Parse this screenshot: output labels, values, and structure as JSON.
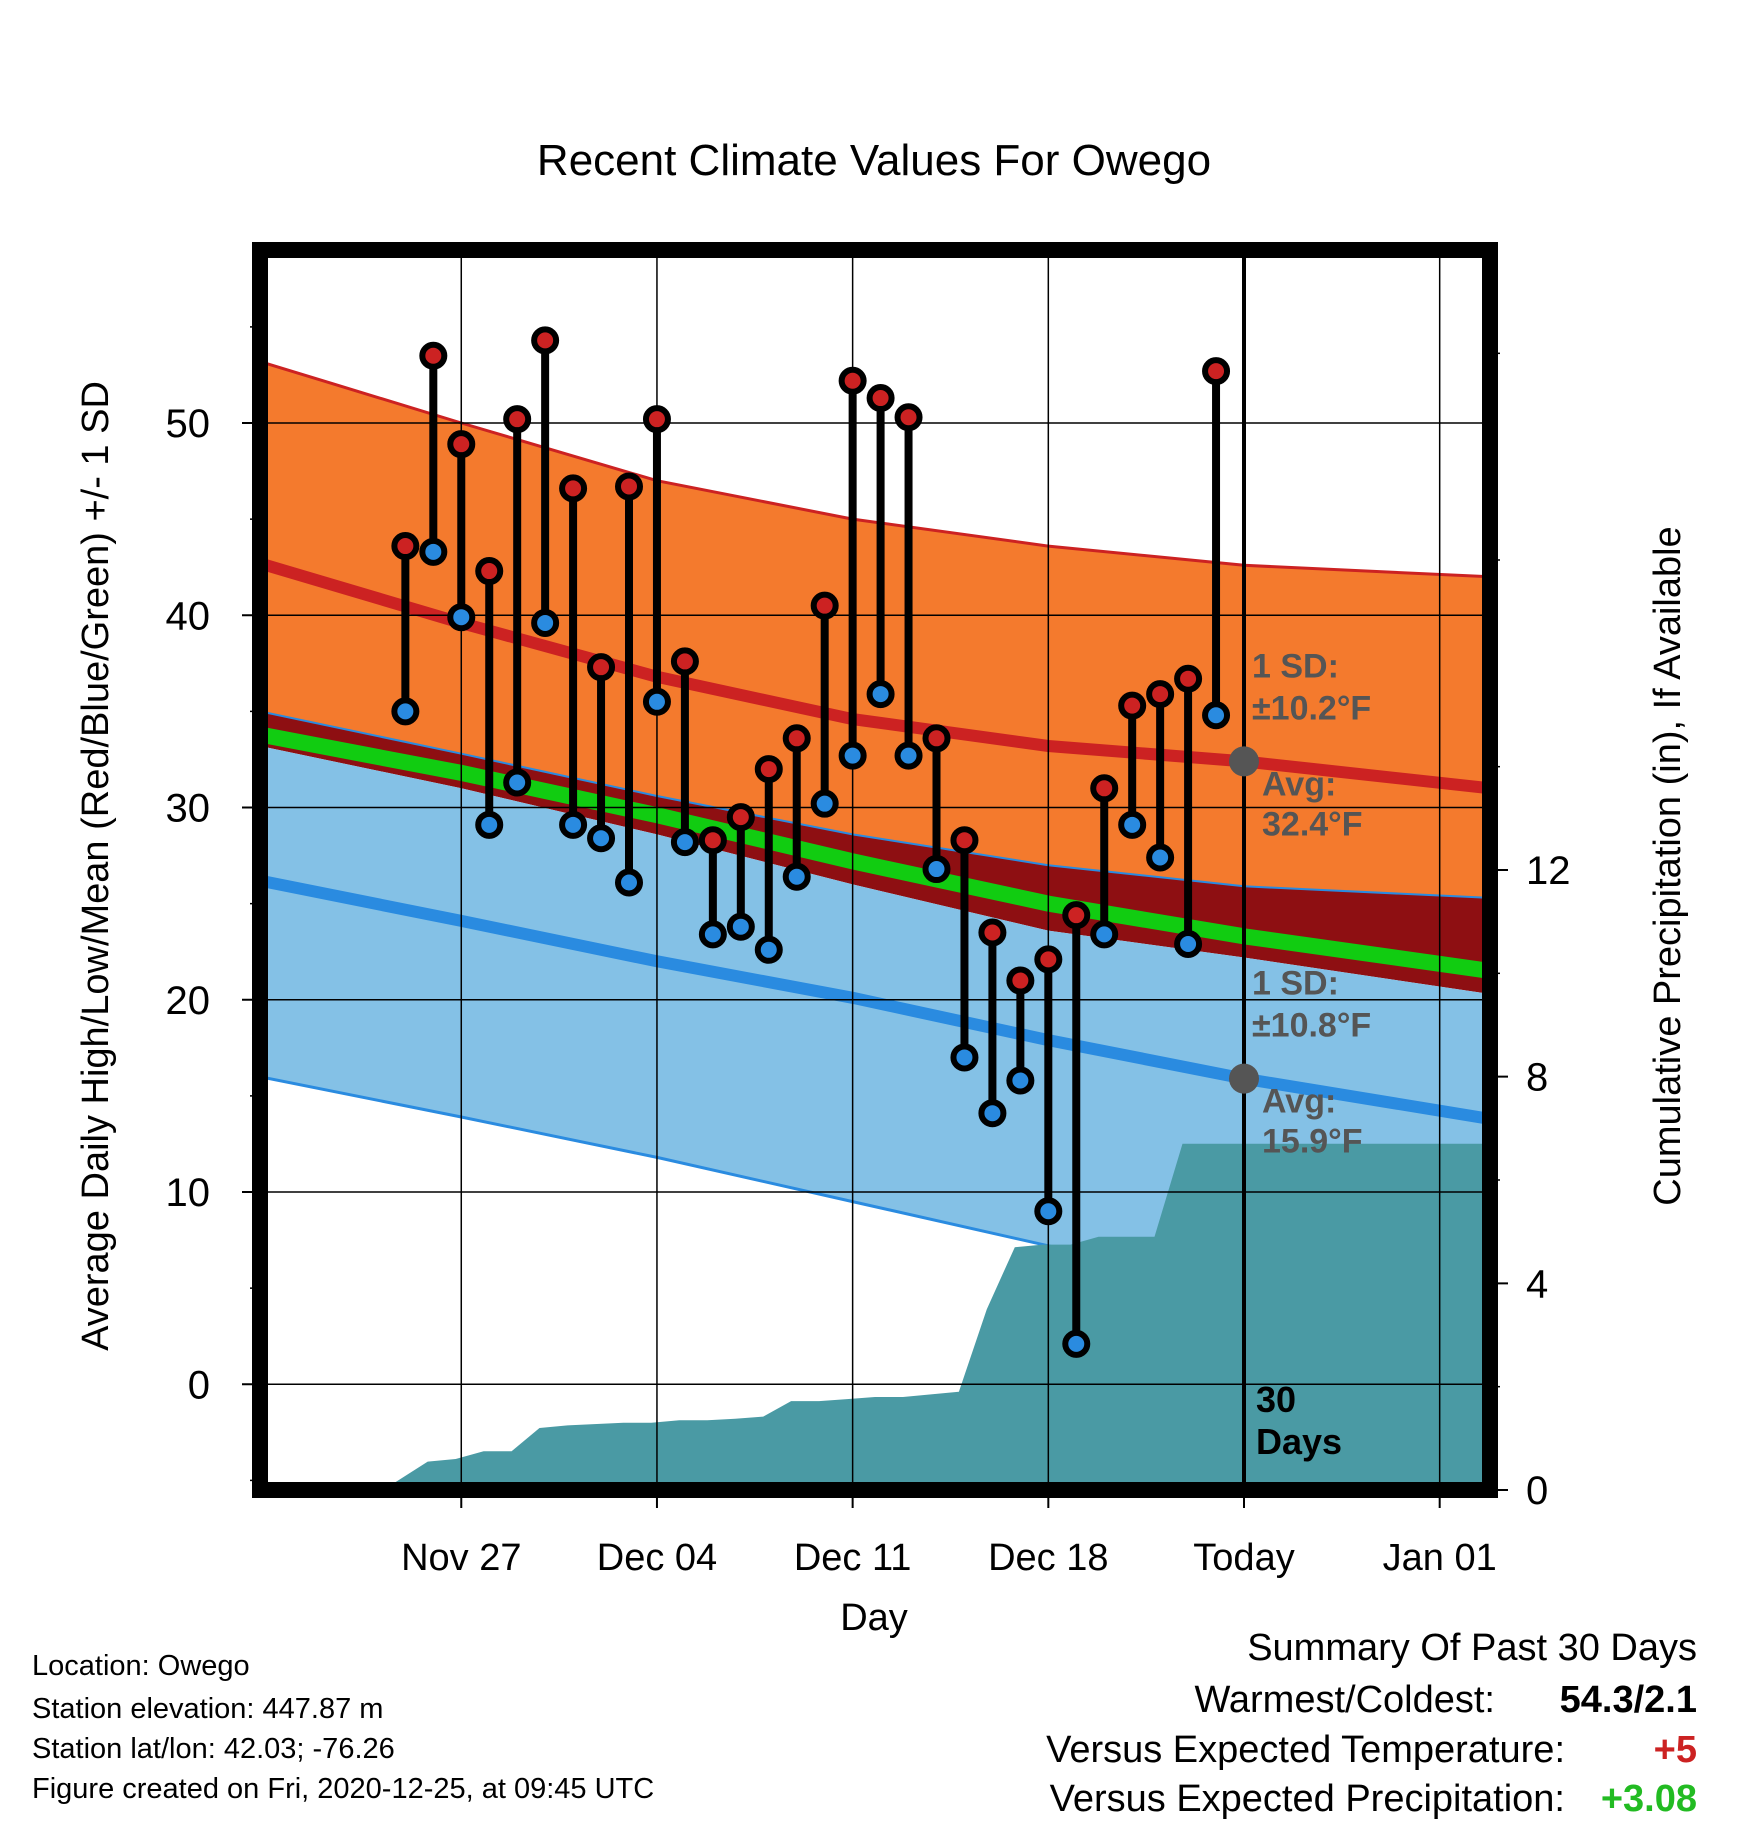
{
  "chart_data": {
    "type": "line",
    "title": "Recent Climate Values For Owego",
    "xlabel": "Day",
    "ylabel": "Average Daily High/Low/Mean (Red/Blue/Green) +/- 1 SD",
    "y2label": "Cumulative Precipitation (in), If Available",
    "ylim": [
      -5.5,
      59
    ],
    "y2lim": [
      0,
      24
    ],
    "xlim": [
      -35.2,
      8.8
    ],
    "grid": true,
    "x_tick_labels": [
      {
        "day": -28,
        "label": "Nov 27"
      },
      {
        "day": -21,
        "label": "Dec 04"
      },
      {
        "day": -14,
        "label": "Dec 11"
      },
      {
        "day": -7,
        "label": "Dec 18"
      },
      {
        "day": 0,
        "label": "Today"
      },
      {
        "day": 7,
        "label": "Jan 01"
      }
    ],
    "y_ticks": [
      0,
      10,
      20,
      30,
      40,
      50
    ],
    "y2_ticks": [
      0,
      4,
      8,
      12
    ],
    "normals": {
      "days": [
        -35.2,
        -28,
        -21,
        -14,
        -7,
        0,
        8.8
      ],
      "high_avg": [
        42.7,
        39.6,
        36.8,
        34.6,
        33.2,
        32.4,
        31.0
      ],
      "high_sd_upper": [
        53.2,
        50.0,
        47.0,
        45.0,
        43.6,
        42.6,
        42.0
      ],
      "mean_avg": [
        33.8,
        31.8,
        29.6,
        27.2,
        25.0,
        23.3,
        21.5
      ],
      "low_avg": [
        26.2,
        24.1,
        22.0,
        20.1,
        17.9,
        15.9,
        13.8
      ],
      "low_sd_lower": [
        16.0,
        13.9,
        11.8,
        9.5,
        7.2,
        5.1,
        3.3
      ],
      "mean_band_top": [
        35.0,
        32.8,
        30.6,
        28.6,
        27.0,
        25.9,
        25.3
      ],
      "mean_band_bottom": [
        33.2,
        31.0,
        28.6,
        26.0,
        23.6,
        22.2,
        20.3
      ]
    },
    "series": [
      {
        "name": "High",
        "color": "#cc2222",
        "values": [
          43.6,
          53.5,
          48.9,
          42.3,
          50.2,
          54.3,
          46.6,
          37.3,
          46.7,
          50.2,
          37.6,
          28.3,
          29.5,
          32.0,
          33.6,
          40.5,
          52.2,
          51.3,
          50.3,
          33.6,
          28.3,
          23.5,
          21.0,
          22.1,
          24.4,
          31.0,
          35.3,
          35.9,
          36.7,
          52.7
        ]
      },
      {
        "name": "Low",
        "color": "#2a8be0",
        "values": [
          35.0,
          43.3,
          39.9,
          29.1,
          31.3,
          39.6,
          29.1,
          28.4,
          26.1,
          35.5,
          28.2,
          23.4,
          23.8,
          22.6,
          26.4,
          30.2,
          32.7,
          35.9,
          32.7,
          26.8,
          17.0,
          14.1,
          15.8,
          9.0,
          2.1,
          23.4,
          29.1,
          27.4,
          22.9,
          34.8
        ]
      }
    ],
    "days": [
      -30,
      -29,
      -28,
      -27,
      -26,
      -25,
      -24,
      -23,
      -22,
      -21,
      -20,
      -19,
      -18,
      -17,
      -16,
      -15,
      -14,
      -13,
      -12,
      -11,
      -10,
      -9,
      -8,
      -7,
      -6,
      -5,
      -4,
      -3,
      -2,
      -1
    ],
    "precipitation": {
      "days": [
        -35.2,
        -30.5,
        -29.2,
        -28.2,
        -27.2,
        -26.2,
        -25.2,
        -24.2,
        -22.2,
        -21.2,
        -20.2,
        -19.2,
        -18.2,
        -17.2,
        -16.2,
        -15.2,
        -14.2,
        -13.2,
        -12.2,
        -11.2,
        -10.2,
        -9.2,
        -8.2,
        -7.2,
        -6.2,
        -5.2,
        -4.2,
        -3.2,
        -2.2,
        -1.2,
        8.8
      ],
      "values": [
        0,
        0.1,
        0.55,
        0.6,
        0.75,
        0.75,
        1.2,
        1.25,
        1.3,
        1.3,
        1.35,
        1.35,
        1.38,
        1.42,
        1.72,
        1.72,
        1.76,
        1.8,
        1.8,
        1.85,
        1.9,
        3.5,
        4.7,
        4.75,
        4.75,
        4.9,
        4.9,
        4.9,
        6.7,
        6.7,
        6.7
      ]
    },
    "annotations": {
      "high_sd_label": "1 SD:",
      "high_sd_value": "±10.2°F",
      "high_avg_label": "Avg:",
      "high_avg_value": "32.4°F",
      "low_sd_label": "1 SD:",
      "low_sd_value": "±10.8°F",
      "low_avg_label": "Avg:",
      "low_avg_value": "15.9°F",
      "days_number": "30",
      "days_word": "Days",
      "high_avg_today": 32.4,
      "low_avg_today": 15.9
    },
    "colors": {
      "high_band": "#f47a2d",
      "high_line": "#cc2222",
      "mean_band": "#8e0f12",
      "mean_line": "#11cc11",
      "low_band": "#84c1e6",
      "low_line": "#2a8be0",
      "precip": "#4a9aa4",
      "annotation": "#555555"
    }
  },
  "info": {
    "location": "Location: Owego",
    "elevation": "Station elevation: 447.87 m",
    "latlon": "Station lat/lon: 42.03; -76.26",
    "created": "Figure created on Fri, 2020-12-25, at 09:45 UTC"
  },
  "summary": {
    "heading": "Summary Of Past 30 Days",
    "warm_cold_label": "Warmest/Coldest:",
    "warm_cold_value": "54.3/2.1",
    "temp_label": "Versus Expected Temperature:",
    "temp_value": "+5",
    "temp_color": "#cc2222",
    "precip_label": "Versus Expected Precipitation:",
    "precip_value": "+3.08",
    "precip_color": "#22bb22"
  }
}
